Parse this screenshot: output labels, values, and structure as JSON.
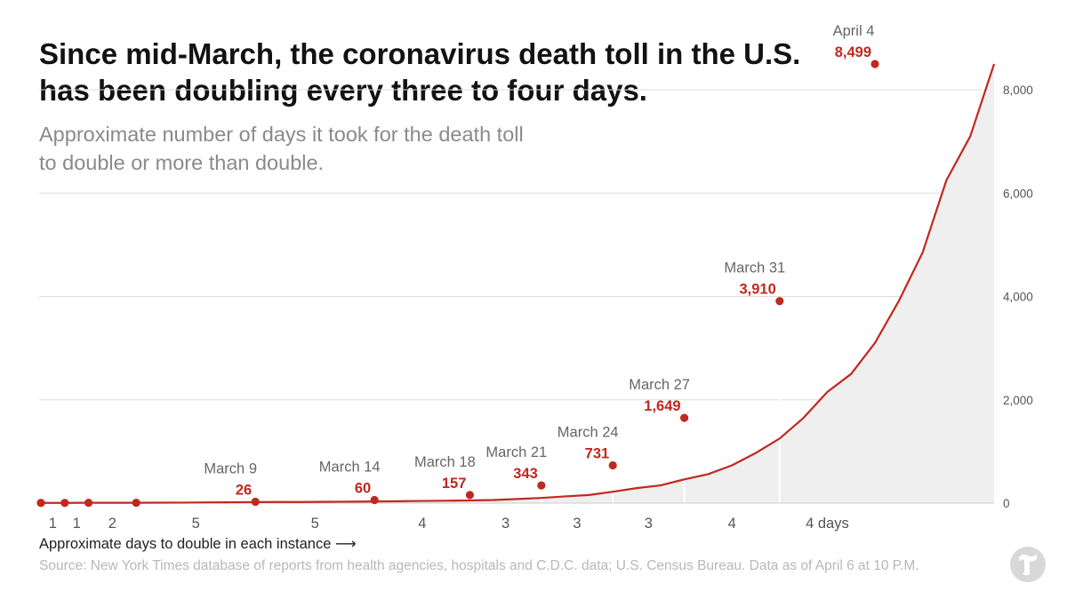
{
  "header": {
    "title": "Since mid-March, the coronavirus death toll in the U.S. has been doubling every three to four days.",
    "subtitle": "Approximate number of days it took for the death toll to double or more than double."
  },
  "footer": {
    "xlabel": "Approximate days to double in each instance ⟶",
    "source": "Source: New York Times database of reports from health agencies, hospitals and C.D.C. data; U.S. Census Bureau. Data as of April 6 at 10 P.M.",
    "logo_icon": "nyt-t-logo-icon"
  },
  "chart_data": {
    "type": "area",
    "ylim": [
      0,
      8800
    ],
    "yticks": [
      0,
      2000,
      4000,
      6000,
      8000
    ],
    "ytick_labels": [
      "0",
      "2,000",
      "4,000",
      "6,000",
      "8,000"
    ],
    "grid": true,
    "colors": {
      "line": "#c0291f",
      "area": "#efefef",
      "grid": "#dddddd"
    },
    "series": [
      {
        "values": [
          4,
          4,
          6,
          6,
          7,
          9,
          10,
          14,
          16,
          19,
          21,
          22,
          26,
          28,
          32,
          37,
          42,
          46,
          52,
          60,
          80,
          100,
          130,
          157,
          220,
          290,
          343,
          460,
          560,
          731,
          970,
          1250,
          1649,
          2150,
          2500,
          3100,
          3910,
          4850,
          6250,
          7100,
          8499
        ]
      }
    ],
    "doubling_points": [
      {
        "index": 0,
        "value": 4,
        "date": "",
        "label": ""
      },
      {
        "index": 1,
        "value": 4,
        "date": "",
        "label": ""
      },
      {
        "index": 2,
        "value": 6,
        "date": "",
        "label": ""
      },
      {
        "index": 4,
        "value": 7,
        "date": "",
        "label": ""
      },
      {
        "index": 9,
        "value": 26,
        "date": "March 9",
        "label": "26"
      },
      {
        "index": 14,
        "value": 60,
        "date": "March 14",
        "label": "60"
      },
      {
        "index": 18,
        "value": 157,
        "date": "March 18",
        "label": "157"
      },
      {
        "index": 21,
        "value": 343,
        "date": "March 21",
        "label": "343"
      },
      {
        "index": 24,
        "value": 731,
        "date": "March 24",
        "label": "731"
      },
      {
        "index": 27,
        "value": 1649,
        "date": "March 27",
        "label": "1,649"
      },
      {
        "index": 31,
        "value": 3910,
        "date": "March 31",
        "label": "3,910"
      },
      {
        "index": 35,
        "value": 8499,
        "date": "April 4",
        "label": "8,499"
      }
    ],
    "doubling_days": [
      "1",
      "1",
      "2",
      "5",
      "5",
      "4",
      "3",
      "3",
      "3",
      "4",
      "4 days"
    ]
  }
}
